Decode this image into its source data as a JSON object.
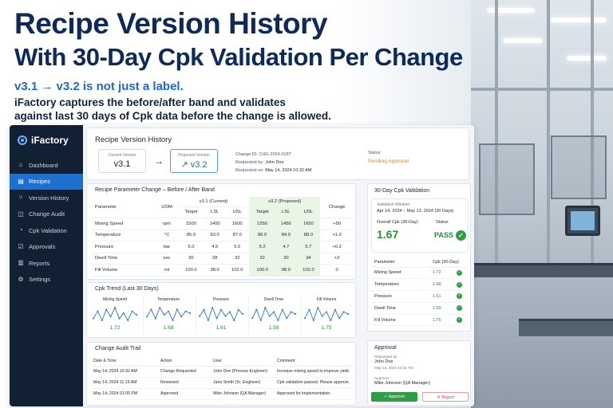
{
  "hero": {
    "title_line1": "Recipe Version History",
    "title_line2": "With 30-Day Cpk Validation Per Change",
    "subtitle": "v3.1 → v3.2 is not just a label.",
    "description_line1": "iFactory captures the before/after band and validates",
    "description_line2": "against last 30 days of Cpk data before the change is allowed."
  },
  "sidebar": {
    "brand": "iFactory",
    "items": [
      {
        "label": "Dashboard",
        "icon": "home-icon"
      },
      {
        "label": "Recipes",
        "icon": "document-icon",
        "active": true
      },
      {
        "label": "Version History",
        "icon": "branch-icon"
      },
      {
        "label": "Change Audit",
        "icon": "clipboard-icon"
      },
      {
        "label": "Cpk Validation",
        "icon": "chart-icon"
      },
      {
        "label": "Approvals",
        "icon": "check-icon"
      },
      {
        "label": "Reports",
        "icon": "bar-chart-icon"
      },
      {
        "label": "Settings",
        "icon": "gear-icon"
      }
    ]
  },
  "header": {
    "title": "Recipe Version History",
    "current_label": "Current Version",
    "current_value": "v3.1",
    "proposed_label": "Proposed Version",
    "proposed_value": "v3.2",
    "change_id": "Change ID: CHG-2024-0187",
    "requested_by_label": "Requested by:",
    "requested_by": "John Doe",
    "requested_on_label": "Requested on:",
    "requested_on": "May 14, 2024 10:32 AM",
    "status_label": "Status",
    "status_value": "Pending Approval"
  },
  "params": {
    "title": "Recipe Parameter Change – Before / After Band",
    "group_current": "v3.1 (Current)",
    "group_proposed": "v3.2 (Proposed)",
    "col_parameter": "Parameter",
    "col_uom": "UOM",
    "col_target": "Target",
    "col_lsl": "LSL",
    "col_usl": "USL",
    "col_change": "Change",
    "rows": [
      {
        "name": "Mixing Speed",
        "uom": "rpm",
        "ct": "1500",
        "cl": "1400",
        "cu": "1600",
        "pt": "1550",
        "pl": "1450",
        "pu": "1650",
        "chg": "+50"
      },
      {
        "name": "Temperature",
        "uom": "°C",
        "ct": "85.0",
        "cl": "83.0",
        "cu": "87.0",
        "pt": "86.0",
        "pl": "84.0",
        "pu": "88.0",
        "chg": "+1.0"
      },
      {
        "name": "Pressure",
        "uom": "bar",
        "ct": "5.0",
        "cl": "4.5",
        "cu": "5.5",
        "pt": "5.2",
        "pl": "4.7",
        "pu": "5.7",
        "chg": "+0.2"
      },
      {
        "name": "Dwell Time",
        "uom": "sec",
        "ct": "30",
        "cl": "28",
        "cu": "32",
        "pt": "32",
        "pl": "30",
        "pu": "34",
        "chg": "+2"
      },
      {
        "name": "Fill Volume",
        "uom": "ml",
        "ct": "100.0",
        "cl": "98.0",
        "cu": "102.0",
        "pt": "100.0",
        "pl": "98.0",
        "pu": "102.0",
        "chg": "0"
      }
    ]
  },
  "cpk": {
    "title": "30-Day Cpk Validation",
    "window_label": "Validation Window",
    "window_value": "Apr 14, 2024 – May 13, 2024 (30 Days)",
    "overall_label": "Overall Cpk (30-Day)",
    "overall_value": "1.67",
    "status_label": "Status",
    "status_value": "PASS",
    "col_param": "Parameter",
    "col_cpk": "Cpk (30-Day)",
    "rows": [
      {
        "name": "Mixing Speed",
        "value": "1.72"
      },
      {
        "name": "Temperature",
        "value": "1.68"
      },
      {
        "name": "Pressure",
        "value": "1.61"
      },
      {
        "name": "Dwell Time",
        "value": "1.59"
      },
      {
        "name": "Fill Volume",
        "value": "1.75"
      }
    ]
  },
  "trend": {
    "title": "Cpk Trend (Last 30 Days)",
    "items": [
      {
        "name": "Mixing Speed",
        "value": "1.72",
        "points": [
          1.7,
          1.74,
          1.69,
          1.75,
          1.71,
          1.76,
          1.7,
          1.73,
          1.69,
          1.74,
          1.72
        ]
      },
      {
        "name": "Temperature",
        "value": "1.68",
        "points": [
          1.66,
          1.7,
          1.65,
          1.71,
          1.67,
          1.69,
          1.64,
          1.7,
          1.66,
          1.69,
          1.68
        ]
      },
      {
        "name": "Pressure",
        "value": "1.61",
        "points": [
          1.6,
          1.63,
          1.58,
          1.64,
          1.59,
          1.63,
          1.6,
          1.62,
          1.58,
          1.63,
          1.61
        ]
      },
      {
        "name": "Dwell Time",
        "value": "1.59",
        "points": [
          1.57,
          1.61,
          1.56,
          1.62,
          1.58,
          1.6,
          1.56,
          1.61,
          1.57,
          1.6,
          1.59
        ]
      },
      {
        "name": "Fill Volume",
        "value": "1.75",
        "points": [
          1.73,
          1.77,
          1.72,
          1.78,
          1.74,
          1.76,
          1.72,
          1.77,
          1.73,
          1.76,
          1.75
        ]
      }
    ]
  },
  "audit": {
    "title": "Change Audit Trail",
    "col_date": "Date & Time",
    "col_action": "Action",
    "col_user": "User",
    "col_comment": "Comment",
    "rows": [
      {
        "date": "May 14, 2024 10:32 AM",
        "action": "Change Requested",
        "user": "John Doe (Process Engineer)",
        "comment": "Increase mixing speed to improve yield."
      },
      {
        "date": "May 14, 2024 11:15 AM",
        "action": "Reviewed",
        "user": "Jane Smith (Sr. Engineer)",
        "comment": "Cpk validation passed. Please approve."
      },
      {
        "date": "May 14, 2024 01:05 PM",
        "action": "Approved",
        "user": "Mike Johnson (QA Manager)",
        "comment": "Approved for implementation."
      }
    ]
  },
  "approval": {
    "title": "Approval",
    "requested_by_label": "Requested by",
    "requested_by": "John Doe",
    "requested_on": "May 14, 2024 10:32 AM",
    "approver_label": "Approver",
    "approver": "Mike Johnson (QA Manager)",
    "approve_label": "✓ Approve",
    "reject_label": "✕ Reject"
  },
  "colors": {
    "accent": "#1f6fd1",
    "pass": "#2e9e45",
    "pending": "#e08a1e",
    "sidebar": "#122033"
  }
}
